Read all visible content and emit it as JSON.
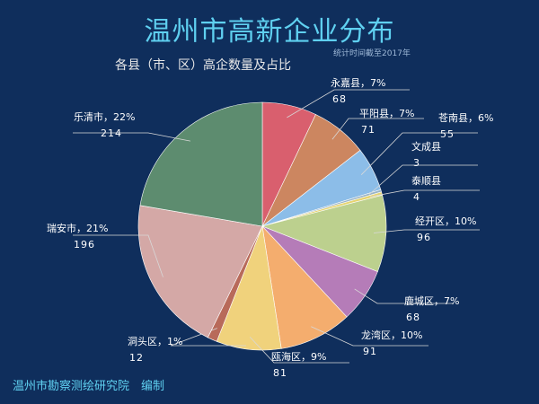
{
  "chart_data": {
    "type": "pie",
    "title": "温州市高新企业分布",
    "subtitle": "各县（市、区）高企数量及占比",
    "note": "统计时间截至2017年",
    "footer": "温州市勘察测绘研究院　编制",
    "slices": [
      {
        "name": "永嘉县",
        "pct_label": "永嘉县，7%",
        "value": 68,
        "color": "#d95f6e"
      },
      {
        "name": "平阳县",
        "pct_label": "平阳县，7%",
        "value": 71,
        "color": "#cc8660"
      },
      {
        "name": "苍南县",
        "pct_label": "苍南县，6%",
        "value": 55,
        "color": "#8cbde8"
      },
      {
        "name": "文成县",
        "pct_label": "文成县",
        "value": 3,
        "color": "#9ab4c6"
      },
      {
        "name": "泰顺县",
        "pct_label": "泰顺县",
        "value": 4,
        "color": "#e6d470"
      },
      {
        "name": "经开区",
        "pct_label": "经开区，10%",
        "value": 96,
        "color": "#bcd08e"
      },
      {
        "name": "鹿城区",
        "pct_label": "鹿城区，7%",
        "value": 68,
        "color": "#b57cb8"
      },
      {
        "name": "龙湾区",
        "pct_label": "龙湾区，10%",
        "value": 91,
        "color": "#f4ad6e"
      },
      {
        "name": "瓯海区",
        "pct_label": "瓯海区，9%",
        "value": 81,
        "color": "#f0d27c"
      },
      {
        "name": "洞头区",
        "pct_label": "洞头区，1%",
        "value": 12,
        "color": "#b86a5a"
      },
      {
        "name": "瑞安市",
        "pct_label": "瑞安市，21%",
        "value": 196,
        "color": "#d4a8a6"
      },
      {
        "name": "乐清市",
        "pct_label": "乐清市，22%",
        "value": 214,
        "color": "#5d8c6f"
      }
    ]
  }
}
